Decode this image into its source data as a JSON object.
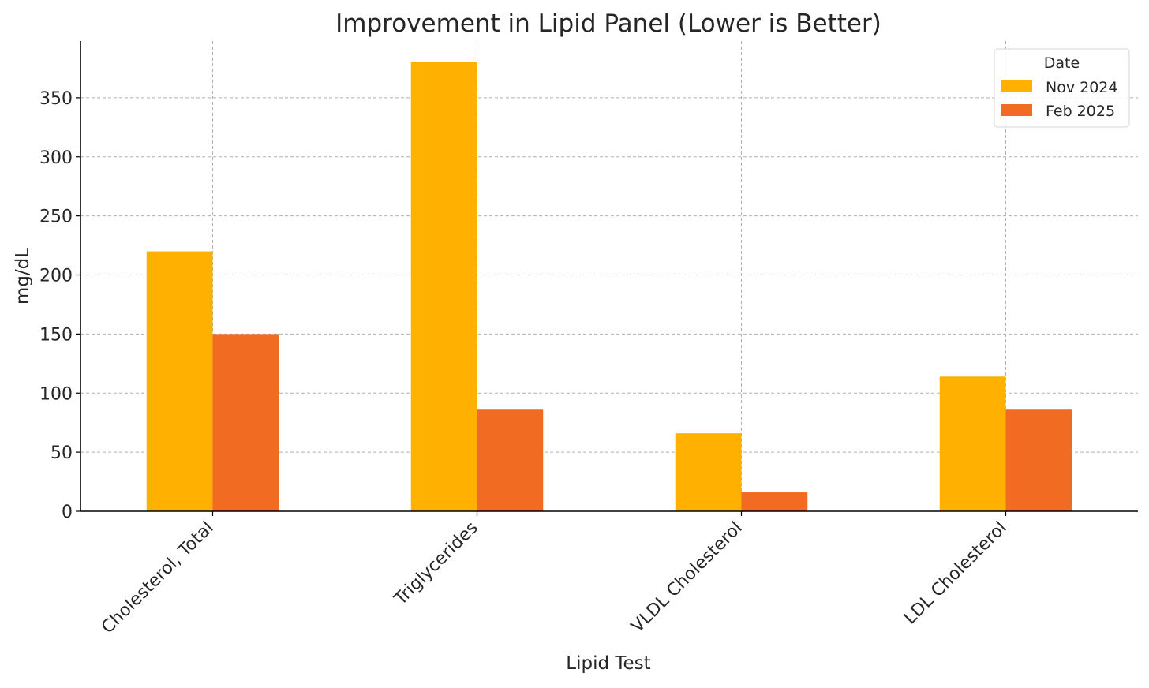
{
  "chart_data": {
    "type": "bar",
    "title": "Improvement in Lipid Panel (Lower is Better)",
    "xlabel": "Lipid Test",
    "ylabel": "mg/dL",
    "categories": [
      "Cholesterol, Total",
      "Triglycerides",
      "VLDL Cholesterol",
      "LDL Cholesterol"
    ],
    "series": [
      {
        "name": "Nov 2024",
        "color": "#FFB000",
        "values": [
          220,
          380,
          66,
          114
        ]
      },
      {
        "name": "Feb 2025",
        "color": "#F26B22",
        "values": [
          150,
          86,
          16,
          86
        ]
      }
    ],
    "ylim": [
      0,
      398
    ],
    "yticks": [
      0,
      50,
      100,
      150,
      200,
      250,
      300,
      350
    ],
    "grid": true,
    "legend": {
      "title": "Date",
      "position": "top-right"
    }
  }
}
